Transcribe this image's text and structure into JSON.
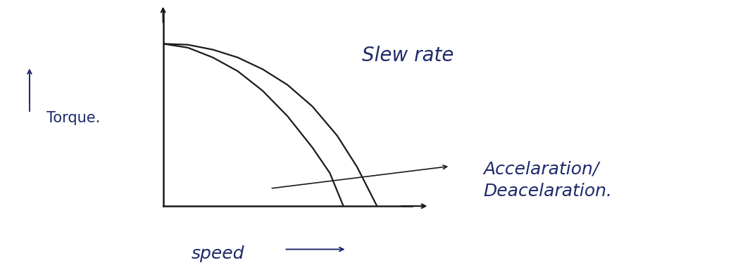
{
  "chart_data": {
    "type": "line",
    "x_label": "speed",
    "y_label": "Torque.",
    "xlim": [
      0,
      10
    ],
    "ylim": [
      0,
      10
    ],
    "xticks": [],
    "yticks": [],
    "tick_labels": false,
    "grid": false,
    "series": [
      {
        "name": "Slew rate",
        "color": "#1a1a1a",
        "line_style": "solid",
        "x": [
          0,
          1,
          2,
          3,
          4,
          5,
          6,
          7,
          7.8,
          8.6
        ],
        "values": [
          8.3,
          8.25,
          8.0,
          7.6,
          7.0,
          6.2,
          5.1,
          3.6,
          2.0,
          0
        ]
      },
      {
        "name": "Accelaration/\nDeacelaration.",
        "color": "#1a1a1a",
        "line_style": "solid",
        "x": [
          0,
          1,
          2,
          3,
          4,
          5,
          6,
          6.7,
          7.25
        ],
        "values": [
          8.3,
          8.1,
          7.6,
          6.9,
          5.9,
          4.6,
          3.0,
          1.7,
          0
        ]
      }
    ]
  }
}
